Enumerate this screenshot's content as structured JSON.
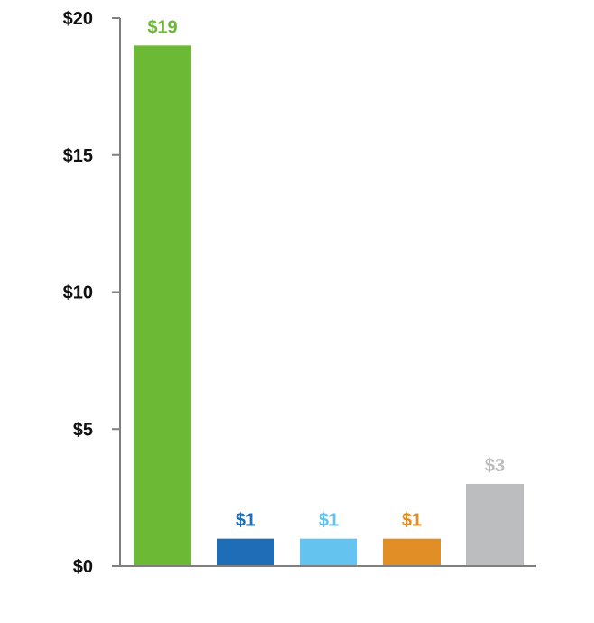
{
  "chart_data": {
    "type": "bar",
    "title": "",
    "xlabel": "",
    "ylabel": "",
    "categories": [
      "",
      "",
      "",
      "",
      ""
    ],
    "values": [
      19,
      1,
      1,
      1,
      3
    ],
    "data_labels": [
      "$19",
      "$1",
      "$1",
      "$1",
      "$3"
    ],
    "colors": [
      "#6bb934",
      "#1e6db6",
      "#64c3ef",
      "#e08e25",
      "#bcbdbf"
    ],
    "ylim": [
      0,
      20
    ],
    "y_ticks": [
      0,
      5,
      10,
      15,
      20
    ],
    "y_tick_labels": [
      "$0",
      "$5",
      "$10",
      "$15",
      "$20"
    ],
    "grid": false,
    "legend": "none",
    "axis_color": "#7f7f7f",
    "tick_label_color": "#111111"
  }
}
